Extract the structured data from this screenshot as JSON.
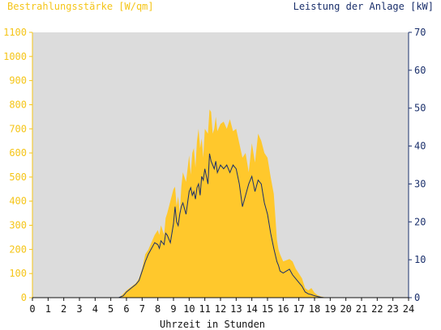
{
  "chart_data": {
    "type": "area",
    "title_left": "Bestrahlungsstärke [W/qm]",
    "title_right": "Leistung der Anlage [kW]",
    "xlabel": "Uhrzeit in Stunden",
    "xlim": [
      0,
      24
    ],
    "x_ticks": [
      "0",
      "1",
      "2",
      "3",
      "4",
      "5",
      "6",
      "7",
      "8",
      "9",
      "10",
      "11",
      "12",
      "13",
      "14",
      "15",
      "16",
      "17",
      "18",
      "19",
      "20",
      "21",
      "22",
      "23",
      "24"
    ],
    "y_left_lim": [
      0,
      1100
    ],
    "y_left_ticks": [
      "0",
      "100",
      "200",
      "300",
      "400",
      "500",
      "600",
      "700",
      "800",
      "900",
      "1000",
      "1100"
    ],
    "y_right_lim": [
      0,
      70
    ],
    "y_right_ticks": [
      "0",
      "10",
      "20",
      "30",
      "40",
      "50",
      "60",
      "70"
    ],
    "grid": false,
    "colors": {
      "background": "#dcdcdc",
      "irradiance_fill": "#ffc82c",
      "power_line": "#1a2f6b",
      "left_axis": "#f5c518",
      "right_axis": "#1a2f6b"
    },
    "series": [
      {
        "axis": "left",
        "style": "area",
        "x": [
          0,
          5.5,
          5.7,
          6.0,
          6.3,
          6.6,
          6.8,
          7.0,
          7.2,
          7.4,
          7.6,
          7.8,
          8.0,
          8.1,
          8.2,
          8.4,
          8.5,
          8.6,
          8.8,
          9.0,
          9.1,
          9.2,
          9.3,
          9.4,
          9.5,
          9.6,
          9.8,
          10.0,
          10.1,
          10.2,
          10.3,
          10.4,
          10.5,
          10.6,
          10.7,
          10.8,
          10.9,
          11.0,
          11.2,
          11.3,
          11.4,
          11.5,
          11.6,
          11.7,
          11.8,
          12.0,
          12.2,
          12.4,
          12.6,
          12.8,
          13.0,
          13.2,
          13.4,
          13.6,
          13.8,
          14.0,
          14.2,
          14.4,
          14.6,
          14.8,
          15.0,
          15.2,
          15.4,
          15.6,
          15.7,
          15.8,
          16.0,
          16.2,
          16.4,
          16.6,
          16.8,
          17.0,
          17.2,
          17.4,
          17.6,
          17.8,
          18.0,
          18.2,
          18.4,
          18.6,
          19.0,
          24
        ],
        "y": [
          0,
          0,
          10,
          30,
          45,
          60,
          80,
          120,
          180,
          200,
          230,
          260,
          280,
          260,
          300,
          260,
          330,
          350,
          400,
          450,
          460,
          380,
          420,
          350,
          460,
          520,
          480,
          590,
          510,
          600,
          620,
          540,
          650,
          700,
          620,
          660,
          580,
          700,
          680,
          780,
          770,
          680,
          700,
          750,
          690,
          720,
          730,
          700,
          740,
          690,
          700,
          640,
          580,
          600,
          520,
          640,
          560,
          680,
          650,
          600,
          580,
          500,
          430,
          240,
          200,
          180,
          150,
          155,
          160,
          150,
          120,
          100,
          80,
          40,
          30,
          40,
          20,
          10,
          5,
          2,
          0,
          0
        ]
      },
      {
        "axis": "right",
        "style": "line",
        "x": [
          0,
          5.5,
          5.8,
          6.0,
          6.3,
          6.6,
          6.8,
          7.0,
          7.2,
          7.4,
          7.6,
          7.8,
          8.0,
          8.1,
          8.2,
          8.4,
          8.5,
          8.6,
          8.8,
          9.0,
          9.1,
          9.2,
          9.3,
          9.4,
          9.5,
          9.6,
          9.8,
          10.0,
          10.1,
          10.2,
          10.3,
          10.4,
          10.5,
          10.6,
          10.7,
          10.8,
          10.9,
          11.0,
          11.2,
          11.3,
          11.4,
          11.5,
          11.6,
          11.7,
          11.8,
          12.0,
          12.2,
          12.4,
          12.6,
          12.8,
          13.0,
          13.2,
          13.4,
          13.6,
          13.8,
          14.0,
          14.2,
          14.4,
          14.6,
          14.8,
          15.0,
          15.2,
          15.4,
          15.6,
          15.7,
          15.8,
          16.0,
          16.2,
          16.4,
          16.6,
          16.8,
          17.0,
          17.2,
          17.4,
          17.6,
          17.8,
          18.0,
          18.2,
          18.4,
          18.6,
          19.0,
          24
        ],
        "y": [
          0,
          0,
          0.5,
          1.5,
          2.5,
          3.5,
          4.5,
          7.0,
          9.5,
          11.5,
          13.0,
          14.5,
          14.0,
          13.0,
          15.0,
          14.0,
          17.0,
          16.5,
          14.5,
          19.5,
          24.0,
          20.0,
          19.0,
          22.0,
          24.0,
          25.0,
          22.0,
          28.0,
          29.0,
          27.0,
          28.0,
          26.0,
          29.0,
          30.0,
          27.0,
          32.0,
          31.0,
          34.0,
          30.0,
          38.0,
          36.0,
          35.0,
          34.0,
          36.0,
          33.0,
          35.0,
          34.0,
          35.0,
          33.0,
          35.0,
          34.0,
          30.0,
          24.0,
          27.0,
          30.0,
          32.0,
          28.0,
          31.0,
          30.0,
          25.0,
          22.0,
          17.0,
          13.0,
          9.5,
          8.5,
          7.0,
          6.5,
          7.0,
          7.5,
          6.0,
          5.0,
          4.0,
          3.0,
          1.5,
          1.0,
          0.8,
          0.5,
          0.3,
          0.1,
          0,
          0,
          0
        ]
      }
    ]
  }
}
